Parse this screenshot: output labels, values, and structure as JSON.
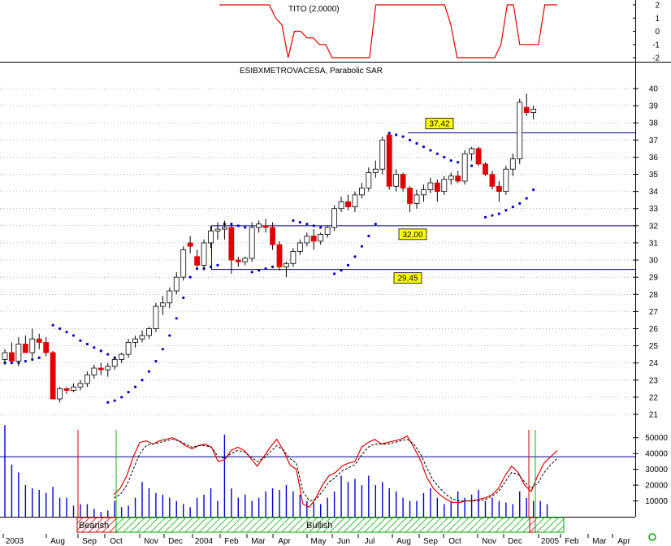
{
  "colors": {
    "up_candle": "#ffffff",
    "down_candle": "#e00000",
    "sar_dots": "#0000cc",
    "indicator_line": "#e00000",
    "volume_bars": "#0000cc",
    "level_lines": "#000080",
    "label_box": "#ffff00",
    "bearish_marker": "#cc0000",
    "bullish_marker": "#00bb00",
    "hatch": "#00aa00"
  },
  "chart_data": [
    {
      "type": "line",
      "title": "TITO (2,0000)",
      "ylim": [
        -2,
        2
      ],
      "yticks": [
        "2",
        "1",
        "0",
        "-1",
        "-2"
      ],
      "series": [
        {
          "values": [
            2,
            2,
            2,
            2,
            2,
            2,
            2,
            2,
            2,
            1,
            0.5,
            -2,
            0,
            0,
            -0.5,
            -0.5,
            -1,
            -1,
            -2,
            -2,
            -2,
            -2,
            -2,
            -2,
            -2,
            2,
            2,
            2,
            2,
            2,
            2,
            2,
            2,
            2,
            2,
            2,
            2,
            0.5,
            -2,
            -2,
            -2,
            -2,
            -2,
            -2,
            -2,
            -1,
            2,
            2,
            -1,
            -1,
            -1,
            -1,
            2,
            2,
            2
          ]
        }
      ]
    },
    {
      "type": "bar",
      "title": "ESIBXMETROVACESA, Parabolic SAR",
      "ylim": [
        21,
        41
      ],
      "yticks": [
        "40",
        "39",
        "38",
        "37",
        "36",
        "35",
        "34",
        "33",
        "32",
        "31",
        "30",
        "29",
        "28",
        "27",
        "26",
        "25",
        "24",
        "23",
        "22",
        "21"
      ],
      "ohlc": [
        [
          24.2,
          24.8,
          23.9,
          24.6
        ],
        [
          24.6,
          25.2,
          24.3,
          24.1
        ],
        [
          24.1,
          25.5,
          23.8,
          25.1
        ],
        [
          25.1,
          25.6,
          24.6,
          24.6
        ],
        [
          24.6,
          26.0,
          24.3,
          25.4
        ],
        [
          25.4,
          25.7,
          24.8,
          25.2
        ],
        [
          25.2,
          25.5,
          24.4,
          24.6
        ],
        [
          24.6,
          24.7,
          22.0,
          21.9
        ],
        [
          21.9,
          22.6,
          21.7,
          22.5
        ],
        [
          22.5,
          22.6,
          22.2,
          22.4
        ],
        [
          22.4,
          22.8,
          22.3,
          22.6
        ],
        [
          22.6,
          23.0,
          22.4,
          22.8
        ],
        [
          22.8,
          23.5,
          22.6,
          23.3
        ],
        [
          23.3,
          23.9,
          23.1,
          23.7
        ],
        [
          23.7,
          24.0,
          23.3,
          23.6
        ],
        [
          23.6,
          24.0,
          23.2,
          23.8
        ],
        [
          23.8,
          24.4,
          23.6,
          24.2
        ],
        [
          24.2,
          24.6,
          24.0,
          24.5
        ],
        [
          24.5,
          25.4,
          24.3,
          25.2
        ],
        [
          25.2,
          25.6,
          24.9,
          25.4
        ],
        [
          25.4,
          25.9,
          25.2,
          25.6
        ],
        [
          25.6,
          26.1,
          25.4,
          26.0
        ],
        [
          26.0,
          27.5,
          25.8,
          27.3
        ],
        [
          27.3,
          27.9,
          26.8,
          27.5
        ],
        [
          27.5,
          28.4,
          27.2,
          28.2
        ],
        [
          28.2,
          29.3,
          28.0,
          29.0
        ],
        [
          29.0,
          30.8,
          28.8,
          30.6
        ],
        [
          31.0,
          31.4,
          30.4,
          30.8
        ],
        [
          30.2,
          30.6,
          29.6,
          29.7
        ],
        [
          29.7,
          31.2,
          29.4,
          31.0
        ],
        [
          31.0,
          32.0,
          30.7,
          31.7
        ],
        [
          31.7,
          32.2,
          31.2,
          31.8
        ],
        [
          31.8,
          32.3,
          31.2,
          31.9
        ],
        [
          31.9,
          32.1,
          29.2,
          30.0
        ],
        [
          30.0,
          30.2,
          29.6,
          29.9
        ],
        [
          29.9,
          30.2,
          29.7,
          30.1
        ],
        [
          30.1,
          32.2,
          29.9,
          31.9
        ],
        [
          31.9,
          32.3,
          31.6,
          32.1
        ],
        [
          32.0,
          32.4,
          31.6,
          31.9
        ],
        [
          31.9,
          32.2,
          30.6,
          30.9
        ],
        [
          30.9,
          31.1,
          29.4,
          29.6
        ],
        [
          29.6,
          29.9,
          29.0,
          29.8
        ],
        [
          29.8,
          30.7,
          29.6,
          30.5
        ],
        [
          30.5,
          31.2,
          30.3,
          31.0
        ],
        [
          31.0,
          31.6,
          30.8,
          31.4
        ],
        [
          31.4,
          31.8,
          30.6,
          31.1
        ],
        [
          31.1,
          31.6,
          30.9,
          31.5
        ],
        [
          31.5,
          32.0,
          31.3,
          31.9
        ],
        [
          31.9,
          33.2,
          31.7,
          33.0
        ],
        [
          33.0,
          33.7,
          32.8,
          33.4
        ],
        [
          33.4,
          33.8,
          32.9,
          33.1
        ],
        [
          33.1,
          34.0,
          32.8,
          33.8
        ],
        [
          33.8,
          34.5,
          33.6,
          34.2
        ],
        [
          34.2,
          35.4,
          34.0,
          35.1
        ],
        [
          35.1,
          35.8,
          34.8,
          35.3
        ],
        [
          35.3,
          37.2,
          35.0,
          37.0
        ],
        [
          37.3,
          37.4,
          34.1,
          34.3
        ],
        [
          34.3,
          35.3,
          34.0,
          35.0
        ],
        [
          35.0,
          35.1,
          34.0,
          34.2
        ],
        [
          34.2,
          34.3,
          32.8,
          33.3
        ],
        [
          33.3,
          34.1,
          33.0,
          33.8
        ],
        [
          33.8,
          34.4,
          33.4,
          34.1
        ],
        [
          34.1,
          34.8,
          33.9,
          34.5
        ],
        [
          34.5,
          34.7,
          33.4,
          34.0
        ],
        [
          34.0,
          34.9,
          33.8,
          34.7
        ],
        [
          34.7,
          35.1,
          34.4,
          34.9
        ],
        [
          34.9,
          35.2,
          34.5,
          34.6
        ],
        [
          34.6,
          36.4,
          34.4,
          36.2
        ],
        [
          36.2,
          36.6,
          35.8,
          36.5
        ],
        [
          36.5,
          36.6,
          35.5,
          35.6
        ],
        [
          35.6,
          35.7,
          34.9,
          35.0
        ],
        [
          35.0,
          35.2,
          34.1,
          34.3
        ],
        [
          34.3,
          34.6,
          33.4,
          34.0
        ],
        [
          34.0,
          35.5,
          33.8,
          35.3
        ],
        [
          35.3,
          36.2,
          34.9,
          35.9
        ],
        [
          35.9,
          39.4,
          35.6,
          39.2
        ],
        [
          38.9,
          39.7,
          38.4,
          38.6
        ],
        [
          38.6,
          39.0,
          38.2,
          38.8
        ]
      ],
      "sar": [
        [
          0,
          24.0
        ],
        [
          1,
          24.0
        ],
        [
          2,
          24.0
        ],
        [
          3,
          24.1
        ],
        [
          4,
          24.2
        ],
        [
          5,
          24.3
        ],
        [
          7,
          26.2
        ],
        [
          8,
          26.0
        ],
        [
          9,
          25.8
        ],
        [
          10,
          25.6
        ],
        [
          11,
          25.3
        ],
        [
          12,
          25.1
        ],
        [
          13,
          24.9
        ],
        [
          14,
          24.7
        ],
        [
          15,
          24.5
        ],
        [
          16,
          24.3
        ],
        [
          15,
          21.7
        ],
        [
          16,
          21.8
        ],
        [
          17,
          22.0
        ],
        [
          18,
          22.3
        ],
        [
          19,
          22.6
        ],
        [
          20,
          23.0
        ],
        [
          21,
          23.5
        ],
        [
          22,
          24.1
        ],
        [
          23,
          24.8
        ],
        [
          24,
          25.6
        ],
        [
          25,
          26.6
        ],
        [
          26,
          27.8
        ],
        [
          27,
          29.0
        ],
        [
          28,
          29.5
        ],
        [
          29,
          29.5
        ],
        [
          30,
          29.6
        ],
        [
          31,
          29.7
        ],
        [
          32,
          32.1
        ],
        [
          33,
          32.1
        ],
        [
          34,
          32.0
        ],
        [
          35,
          31.9
        ],
        [
          36,
          29.3
        ],
        [
          37,
          29.4
        ],
        [
          38,
          29.5
        ],
        [
          39,
          29.6
        ],
        [
          40,
          29.8
        ],
        [
          42,
          32.3
        ],
        [
          43,
          32.2
        ],
        [
          44,
          32.1
        ],
        [
          45,
          32.0
        ],
        [
          46,
          31.9
        ],
        [
          47,
          31.8
        ],
        [
          48,
          29.2
        ],
        [
          49,
          29.4
        ],
        [
          50,
          29.7
        ],
        [
          51,
          30.2
        ],
        [
          52,
          30.8
        ],
        [
          53,
          31.4
        ],
        [
          54,
          32.1
        ],
        [
          56,
          37.4
        ],
        [
          57,
          37.3
        ],
        [
          58,
          37.2
        ],
        [
          59,
          37.0
        ],
        [
          60,
          36.8
        ],
        [
          61,
          36.6
        ],
        [
          62,
          36.4
        ],
        [
          63,
          36.2
        ],
        [
          64,
          36.0
        ],
        [
          65,
          35.8
        ],
        [
          66,
          35.7
        ],
        [
          67,
          35.6
        ],
        [
          68,
          35.5
        ],
        [
          70,
          32.5
        ],
        [
          71,
          32.6
        ],
        [
          72,
          32.7
        ],
        [
          73,
          32.9
        ],
        [
          74,
          33.1
        ],
        [
          75,
          33.3
        ],
        [
          76,
          33.6
        ],
        [
          77,
          34.1
        ]
      ],
      "levels": [
        {
          "value": 37.42,
          "label": "37,42"
        },
        {
          "value": 32.0,
          "label": "32,00"
        },
        {
          "value": 29.45,
          "label": "29,45"
        }
      ]
    },
    {
      "type": "line",
      "ylim": [
        0,
        55000
      ],
      "yticks": [
        "50000",
        "40000",
        "30000",
        "20000",
        "10000"
      ],
      "reference_line": 38000,
      "volume": [
        58000,
        33000,
        28000,
        20000,
        18000,
        17000,
        15000,
        19000,
        12000,
        12000,
        7000,
        8000,
        8000,
        5000,
        3000,
        4000,
        10000,
        6000,
        7000,
        12000,
        22000,
        18000,
        15000,
        14000,
        12000,
        10000,
        8000,
        6000,
        12000,
        14000,
        18000,
        10000,
        52000,
        18000,
        12000,
        14000,
        10000,
        12000,
        16000,
        18000,
        17000,
        20000,
        16000,
        14000,
        10000,
        9000,
        8000,
        12000,
        16000,
        26000,
        22000,
        24000,
        20000,
        26000,
        20000,
        22000,
        18000,
        16000,
        12000,
        10000,
        10000,
        15000,
        18000,
        12000,
        8000,
        10000,
        16000,
        12000,
        14000,
        17000,
        10000,
        12000,
        10000,
        9000,
        8000,
        16000,
        12000,
        10000,
        10000,
        8000
      ],
      "series": [
        {
          "values": [
            14000,
            18000,
            26000,
            38000,
            47000,
            48000,
            46000,
            48000,
            49000,
            50000,
            48000,
            45000,
            43000,
            45000,
            46000,
            44000,
            35000,
            36000,
            42000,
            44000,
            42000,
            37000,
            32000,
            38000,
            44000,
            49000,
            42000,
            33000,
            30000,
            8000,
            6000,
            12000,
            20000,
            26000,
            28000,
            32000,
            34000,
            35000,
            44000,
            47000,
            49000,
            46000,
            47000,
            48000,
            49000,
            51000,
            44000,
            36000,
            25000,
            18000,
            14000,
            11000,
            9000,
            9000,
            10000,
            10000,
            11000,
            12000,
            14000,
            18000,
            26000,
            32000,
            28000,
            20000,
            16000,
            26000,
            34000,
            38000,
            42000
          ]
        },
        {
          "values": [
            12000,
            14000,
            20000,
            30000,
            40000,
            45000,
            46000,
            47000,
            48000,
            49000,
            48000,
            46000,
            44000,
            45000,
            45000,
            44000,
            38000,
            37000,
            40000,
            42000,
            41000,
            38000,
            35000,
            37000,
            41000,
            45000,
            42000,
            37000,
            34000,
            16000,
            10000,
            11000,
            16000,
            22000,
            25000,
            29000,
            31000,
            33000,
            39000,
            44000,
            46000,
            46000,
            46000,
            47000,
            48000,
            49000,
            46000,
            40000,
            31000,
            23000,
            18000,
            14000,
            11000,
            10000,
            10000,
            10000,
            10000,
            11000,
            13000,
            16000,
            22000,
            28000,
            27000,
            22000,
            18000,
            21000,
            28000,
            33000,
            37000
          ]
        }
      ]
    }
  ],
  "signals": {
    "bearish_label": "Bearish",
    "bullish_label": "Bullish"
  },
  "x_axis": {
    "labels": [
      "2003",
      "Aug",
      "Sep",
      "Oct",
      "Nov",
      "Dec",
      "2004",
      "Feb",
      "Mar",
      "Apr",
      "May",
      "Jun",
      "Jul",
      "Aug",
      "Sep",
      "Oct",
      "Nov",
      "Dec",
      "2005",
      "Feb",
      "Mar",
      "Apr"
    ]
  }
}
